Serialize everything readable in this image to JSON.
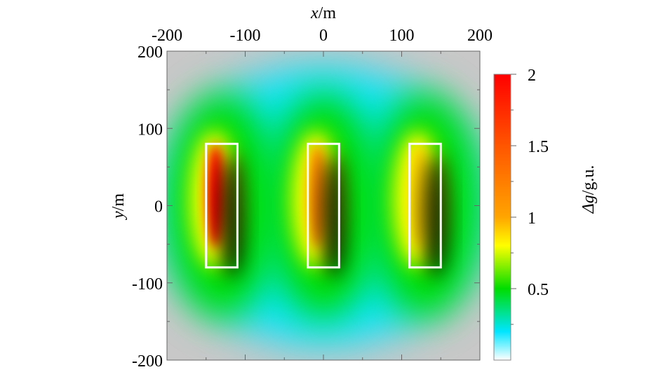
{
  "chart_data": {
    "type": "heatmap",
    "title": "",
    "xlabel": {
      "symbol": "x",
      "unit": "/m"
    },
    "ylabel": {
      "symbol": "y",
      "unit": "/m"
    },
    "xlim": [
      -200,
      200
    ],
    "ylim": [
      -200,
      200
    ],
    "x_ticks": [
      "-200",
      "-100",
      "0",
      "100",
      "200"
    ],
    "y_ticks": [
      "200",
      "100",
      "0",
      "-100",
      "-200"
    ],
    "x_tick_values": [
      -200,
      -100,
      0,
      100,
      200
    ],
    "y_tick_values": [
      200,
      100,
      0,
      -100,
      -200
    ],
    "colorbar": {
      "label": {
        "symbol": "Δg",
        "unit": "/g.u."
      },
      "range": [
        0,
        2
      ],
      "ticks": [
        "2",
        "1.5",
        "1",
        "0.5"
      ],
      "tick_values": [
        2,
        1.5,
        1,
        0.5
      ],
      "colors": [
        {
          "value": 0.0,
          "color": "#ffffff"
        },
        {
          "value": 0.2,
          "color": "#00e5ff"
        },
        {
          "value": 0.5,
          "color": "#00dd00"
        },
        {
          "value": 0.8,
          "color": "#ffff00"
        },
        {
          "value": 1.0,
          "color": "#ffa500"
        },
        {
          "value": 1.5,
          "color": "#ff5500"
        },
        {
          "value": 2.0,
          "color": "#ff0000"
        }
      ]
    },
    "bodies": [
      {
        "x_range": [
          -150,
          -110
        ],
        "y_range": [
          -80,
          80
        ],
        "peak": 2.0,
        "outline": "#ffffff"
      },
      {
        "x_range": [
          -20,
          20
        ],
        "y_range": [
          -80,
          80
        ],
        "peak": 1.2,
        "outline": "#ffffff"
      },
      {
        "x_range": [
          110,
          150
        ],
        "y_range": [
          -80,
          80
        ],
        "peak": 0.9,
        "outline": "#ffffff"
      }
    ],
    "background_color": "#c8c8c8",
    "shadow_color": "#000000"
  }
}
